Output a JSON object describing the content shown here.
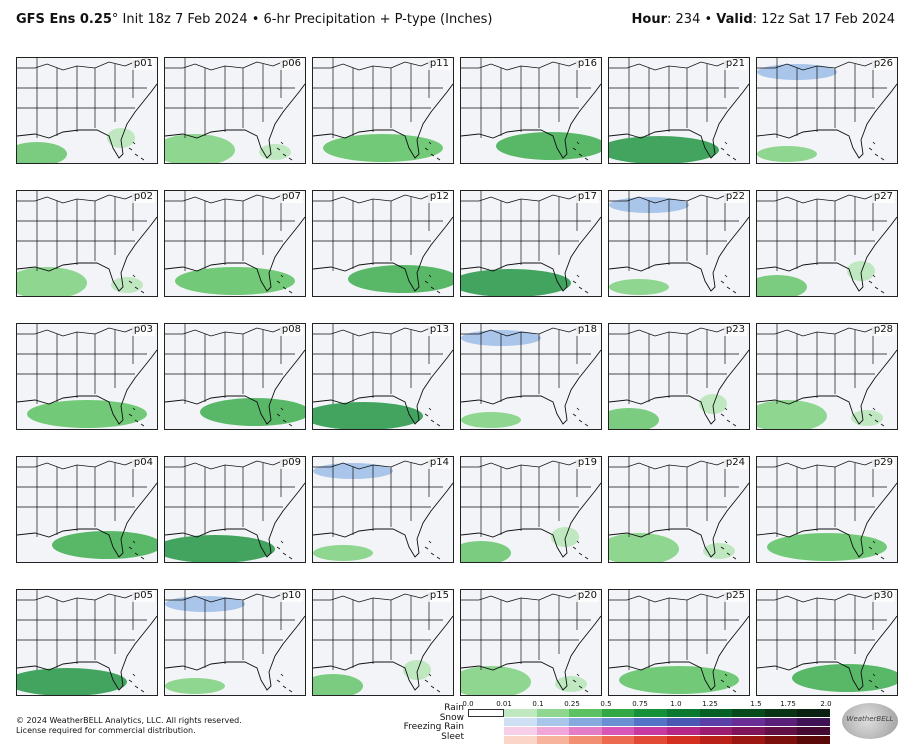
{
  "header": {
    "model": "GFS Ens 0.25",
    "init_text": "° Init 18z 7 Feb 2024 • 6-hr Precipitation + P-type (Inches)",
    "hour_label": "Hour",
    "hour_value": ": 234 • ",
    "valid_label": "Valid",
    "valid_value": ": 12z Sat 17 Feb 2024"
  },
  "panels": [
    [
      "p01",
      "p06",
      "p11",
      "p16",
      "p21",
      "p26"
    ],
    [
      "p02",
      "p07",
      "p12",
      "p17",
      "p22",
      "p27"
    ],
    [
      "p03",
      "p08",
      "p13",
      "p18",
      "p23",
      "p28"
    ],
    [
      "p04",
      "p09",
      "p14",
      "p19",
      "p24",
      "p29"
    ],
    [
      "p05",
      "p10",
      "p15",
      "p20",
      "p25",
      "p30"
    ]
  ],
  "legend": {
    "names": [
      "Rain",
      "Snow",
      "Freezing Rain",
      "Sleet"
    ],
    "ticks": [
      "0.0",
      "0.01",
      "0.1",
      "0.25",
      "0.5",
      "0.75",
      "1.0",
      "1.25",
      "1.5",
      "1.75",
      "2.0"
    ],
    "colors": {
      "rain": [
        "#bfe8c0",
        "#8fd690",
        "#5cc261",
        "#32a844",
        "#17903a",
        "#0b7a30",
        "#065f25",
        "#064a1c",
        "#0a3315",
        "#0a2010"
      ],
      "snow": [
        "#cfe0f4",
        "#a9c5ea",
        "#86a9de",
        "#6a8fd2",
        "#5472c6",
        "#4a58b4",
        "#5a3fa6",
        "#6a2d96",
        "#5a1f78",
        "#3e1255"
      ],
      "freezing_rain": [
        "#f7cfe8",
        "#f0a6d8",
        "#e57cc8",
        "#d857b6",
        "#c93aa0",
        "#b72788",
        "#9c1c70",
        "#7f145a",
        "#611046",
        "#450a32"
      ],
      "sleet": [
        "#fbd6c8",
        "#f7b39b",
        "#f28e72",
        "#ec6a50",
        "#e24a36",
        "#d33022",
        "#b92018",
        "#9c1612",
        "#7c0f0c",
        "#5a0808"
      ]
    }
  },
  "footer": {
    "copyright": "© 2024 WeatherBELL Analytics, LLC. All rights reserved.",
    "license": "License required for commercial distribution."
  },
  "logo_text": "WeatherBELL"
}
